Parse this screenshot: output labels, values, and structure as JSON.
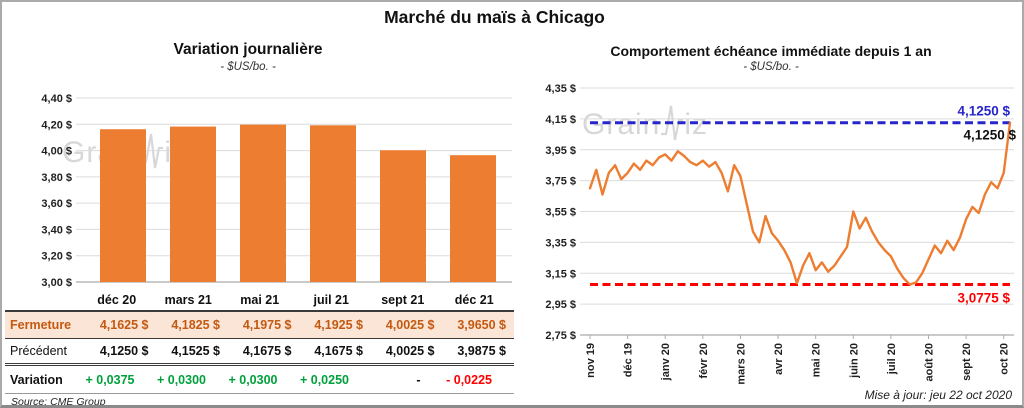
{
  "page": {
    "title": "Marché du maïs à Chicago",
    "update_note": "Mise à jour: jeu 22 oct 2020",
    "source_note": "Source: CME Group",
    "watermark": {
      "part1": "Grain",
      "part2": "iz"
    }
  },
  "colors": {
    "bar_orange": "#ED7D31",
    "line_orange": "#ED7D31",
    "blue_ref": "#2626CB",
    "red_ref": "#FF0000",
    "fermeture_text": "#C45911",
    "fermeture_bg": "#FBE5D6",
    "variation_green": "#00A03C",
    "variation_red": "#FF0000",
    "gridline": "#DCDCDC"
  },
  "chart_data": [
    {
      "type": "bar",
      "title": "Variation journalière",
      "subtitle": "- $US/bo. -",
      "categories": [
        "déc 20",
        "mars 21",
        "mai 21",
        "juil 21",
        "sept 21",
        "déc 21"
      ],
      "values": [
        4.1625,
        4.1825,
        4.1975,
        4.1925,
        4.0025,
        3.965
      ],
      "ylabel": "$US/bo.",
      "ylim": [
        3.0,
        4.4
      ],
      "yticks": [
        4.4,
        4.2,
        4.0,
        3.8,
        3.6,
        3.4,
        3.2,
        3.0
      ],
      "ytick_labels": [
        "4,40 $",
        "4,20 $",
        "4,00 $",
        "3,80 $",
        "3,60 $",
        "3,40 $",
        "3,20 $",
        "3,00 $"
      ],
      "grid": true,
      "bar_color": "#ED7D31"
    },
    {
      "type": "line",
      "title": "Comportement échéance immédiate depuis 1 an",
      "subtitle": "- $US/bo. -",
      "x_labels": [
        "nov 19",
        "déc 19",
        "janv 20",
        "févr 20",
        "mars 20",
        "avr 20",
        "mai 20",
        "juin 20",
        "juil 20",
        "août 20",
        "sept 20",
        "oct 20"
      ],
      "points_per_month": 6,
      "values": [
        3.7,
        3.82,
        3.66,
        3.8,
        3.85,
        3.76,
        3.8,
        3.86,
        3.82,
        3.88,
        3.85,
        3.9,
        3.92,
        3.88,
        3.94,
        3.91,
        3.87,
        3.85,
        3.88,
        3.84,
        3.87,
        3.8,
        3.68,
        3.85,
        3.78,
        3.6,
        3.42,
        3.35,
        3.52,
        3.41,
        3.36,
        3.3,
        3.22,
        3.085,
        3.2,
        3.28,
        3.17,
        3.22,
        3.16,
        3.2,
        3.26,
        3.32,
        3.55,
        3.44,
        3.51,
        3.42,
        3.35,
        3.3,
        3.26,
        3.18,
        3.12,
        3.0775,
        3.09,
        3.15,
        3.24,
        3.33,
        3.28,
        3.36,
        3.3,
        3.38,
        3.5,
        3.58,
        3.54,
        3.66,
        3.74,
        3.7,
        3.8,
        4.125
      ],
      "ylim": [
        2.75,
        4.35
      ],
      "yticks": [
        4.35,
        4.15,
        3.95,
        3.75,
        3.55,
        3.35,
        3.15,
        2.95,
        2.75
      ],
      "ytick_labels": [
        "4,35 $",
        "4,15 $",
        "3,95 $",
        "3,75 $",
        "3,55 $",
        "3,35 $",
        "3,15 $",
        "2,95 $",
        "2,75 $"
      ],
      "grid": true,
      "line_color": "#ED7D31",
      "reference_lines": [
        {
          "value": 4.125,
          "label": "4,1250 $",
          "color": "#2626CB",
          "style": "dashed",
          "label_position": "above-right"
        },
        {
          "value": 3.0775,
          "label": "3,0775 $",
          "color": "#FF0000",
          "style": "dashed",
          "label_position": "below-right"
        }
      ],
      "last_value_label": {
        "text": "4,1250 $",
        "color": "#111111"
      }
    }
  ],
  "table": {
    "col_headers": [
      "déc 20",
      "mars 21",
      "mai 21",
      "juil 21",
      "sept 21",
      "déc 21"
    ],
    "rows": {
      "fermeture": {
        "label": "Fermeture",
        "values": [
          "4,1625 $",
          "4,1825 $",
          "4,1975 $",
          "4,1925 $",
          "4,0025 $",
          "3,9650 $"
        ]
      },
      "precedent": {
        "label": "Précédent",
        "values": [
          "4,1250 $",
          "4,1525 $",
          "4,1675 $",
          "4,1675 $",
          "4,0025 $",
          "3,9875 $"
        ]
      },
      "variation": {
        "label": "Variation",
        "values": [
          "+ 0,0375",
          "+ 0,0300",
          "+ 0,0300",
          "+ 0,0250",
          "-",
          "- 0,0225"
        ],
        "value_colors": [
          "green",
          "green",
          "green",
          "green",
          "black",
          "red"
        ]
      }
    }
  }
}
